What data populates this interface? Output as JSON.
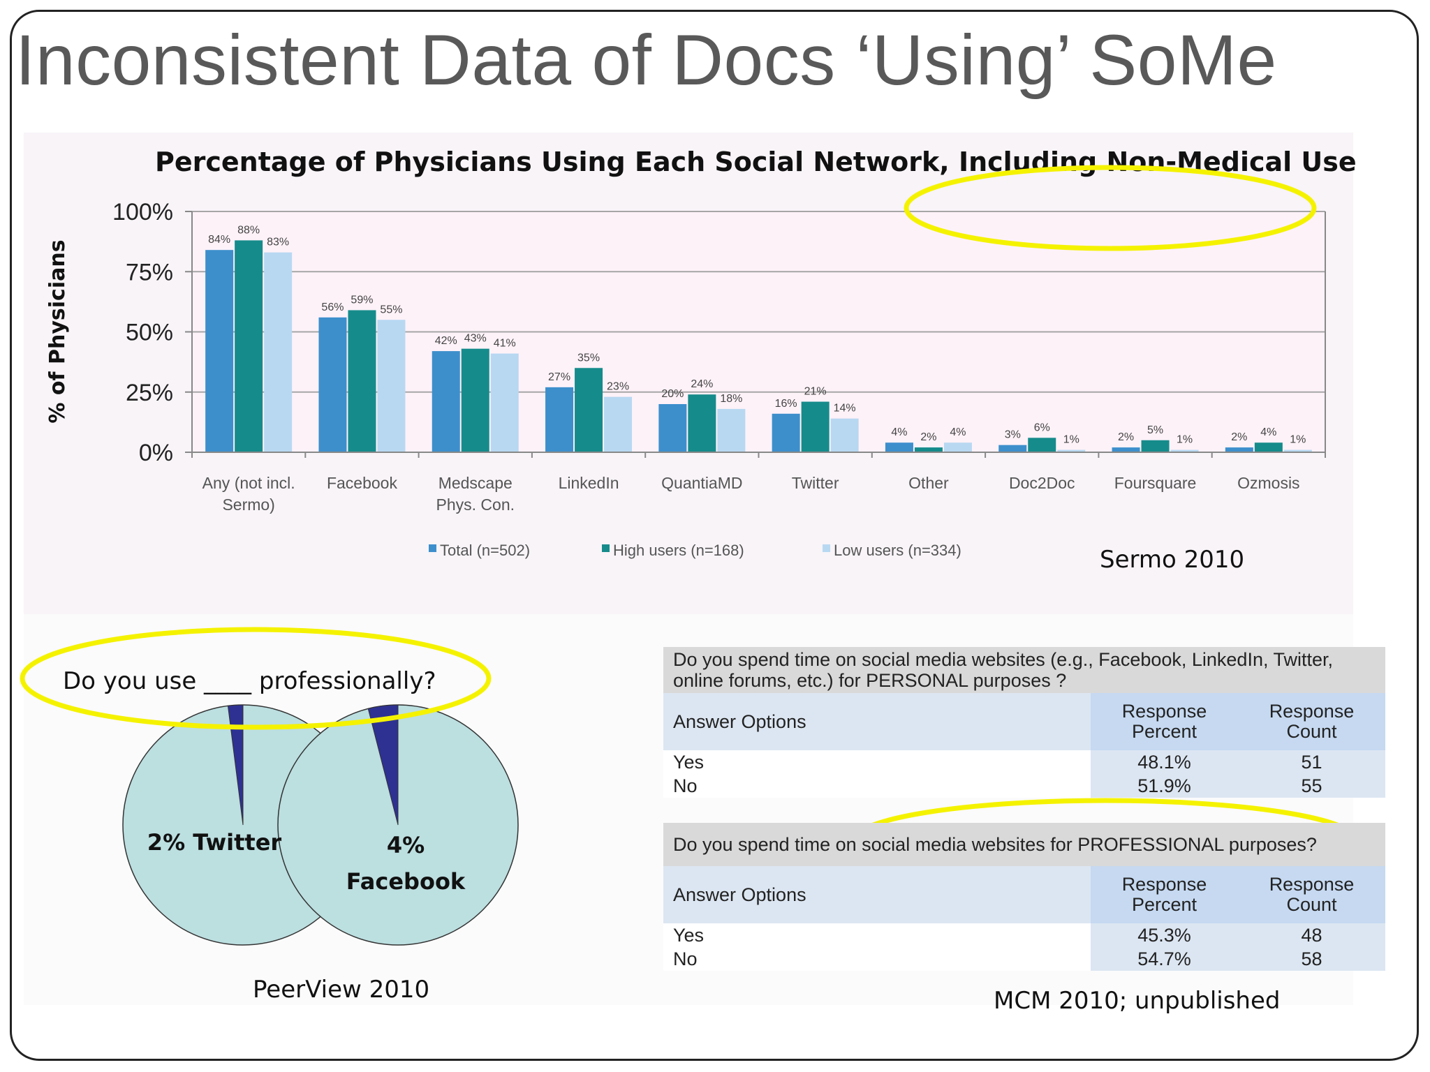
{
  "slide": {
    "title": "Inconsistent Data of Docs ‘Using’ SoMe"
  },
  "chart_data": [
    {
      "type": "bar",
      "title": "Percentage of Physicians Using Each Social Network, Including Non-Medical Use",
      "ylabel": "% of Physicians",
      "xlabel": "",
      "ylim": [
        0,
        100
      ],
      "yticks": [
        "0%",
        "25%",
        "50%",
        "75%",
        "100%"
      ],
      "grid": true,
      "legend_position": "bottom",
      "categories": [
        [
          "Any (not incl.",
          "Sermo)"
        ],
        [
          "Facebook"
        ],
        [
          "Medscape",
          "Phys. Con."
        ],
        [
          "LinkedIn"
        ],
        [
          "QuantiaMD"
        ],
        [
          "Twitter"
        ],
        [
          "Other"
        ],
        [
          "Doc2Doc"
        ],
        [
          "Foursquare"
        ],
        [
          "Ozmosis"
        ]
      ],
      "series": [
        {
          "name": "Total (n=502)",
          "color": "#3d8fcc",
          "values": [
            84,
            56,
            42,
            27,
            20,
            16,
            4,
            3,
            2,
            2
          ],
          "labels": [
            "84%",
            "56%",
            "42%",
            "27%",
            "20%",
            "16%",
            "4%",
            "3%",
            "2%",
            "2%"
          ]
        },
        {
          "name": "High users (n=168)",
          "color": "#168b8b",
          "values": [
            88,
            59,
            43,
            35,
            24,
            21,
            2,
            6,
            5,
            4
          ],
          "labels": [
            "88%",
            "59%",
            "43%",
            "35%",
            "24%",
            "21%",
            "2%",
            "6%",
            "5%",
            "4%"
          ]
        },
        {
          "name": "Low users (n=334)",
          "color": "#b8d8f2",
          "values": [
            83,
            55,
            41,
            23,
            18,
            14,
            4,
            1,
            1,
            1
          ],
          "labels": [
            "83%",
            "55%",
            "41%",
            "23%",
            "18%",
            "14%",
            "4%",
            "1%",
            "1%",
            "1%"
          ]
        }
      ],
      "source": "Sermo 2010"
    },
    {
      "type": "pie",
      "title": "Do you use ____ professionally?",
      "pies": [
        {
          "label": "2% Twitter",
          "value": 2
        },
        {
          "label_lines": [
            "4%",
            "Facebook"
          ],
          "value": 4
        }
      ],
      "colors": {
        "slice": "#2e3192",
        "rest": "#bcdfe0"
      },
      "source": "PeerView 2010"
    },
    {
      "type": "table",
      "tables": [
        {
          "question": "Do you spend time on social media websites (e.g., Facebook, LinkedIn, Twitter, online forums, etc.) for PERSONAL purposes ?",
          "question_lines": [
            "Do you spend time on social media websites (e.g., Facebook, LinkedIn, Twitter,",
            "online forums, etc.) for PERSONAL purposes ?"
          ],
          "columns": [
            "Answer Options",
            "Response Percent",
            "Response Count"
          ],
          "column_lines": [
            [
              "Answer Options"
            ],
            [
              "Response",
              "Percent"
            ],
            [
              "Response",
              "Count"
            ]
          ],
          "rows": [
            [
              "Yes",
              "48.1%",
              "51"
            ],
            [
              "No",
              "51.9%",
              "55"
            ]
          ]
        },
        {
          "question": "Do you spend time on social media websites for PROFESSIONAL purposes?",
          "question_lines": [
            "Do you spend time on social media websites for PROFESSIONAL purposes?"
          ],
          "columns": [
            "Answer Options",
            "Response Percent",
            "Response Count"
          ],
          "column_lines": [
            [
              "Answer Options"
            ],
            [
              "Response",
              "Percent"
            ],
            [
              "Response",
              "Count"
            ]
          ],
          "rows": [
            [
              "Yes",
              "45.3%",
              "48"
            ],
            [
              "No",
              "54.7%",
              "58"
            ]
          ]
        }
      ],
      "source": "MCM 2010; unpublished"
    }
  ],
  "colors": {
    "highlight": "#f5f200",
    "title_text": "#595959",
    "plot_bg": "#fdf2f8"
  }
}
